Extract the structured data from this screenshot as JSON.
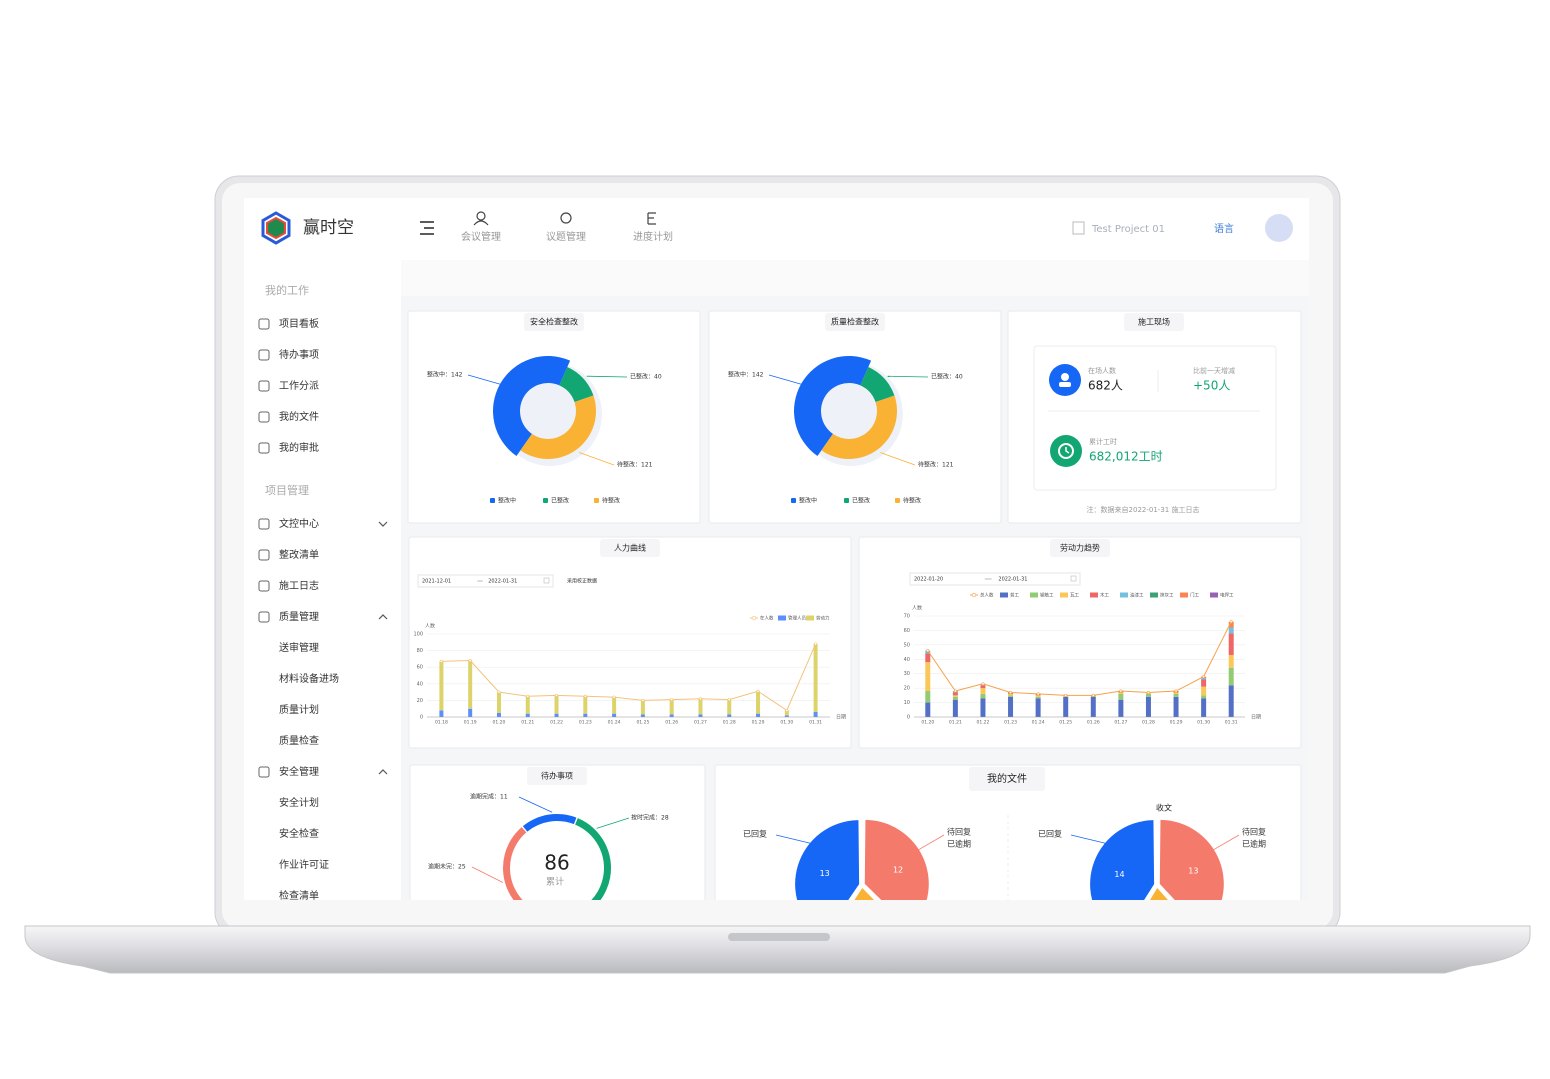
{
  "header": {
    "brand": "赢时空",
    "nav": [
      "会议管理",
      "议题管理",
      "进度计划"
    ],
    "project": "Test Project 01",
    "language": "语言"
  },
  "sidebar": [
    {
      "title": "我的工作",
      "items": [
        {
          "label": "项目看板"
        },
        {
          "label": "待办事项"
        },
        {
          "label": "工作分派"
        },
        {
          "label": "我的文件"
        },
        {
          "label": "我的审批"
        }
      ]
    },
    {
      "title": "项目管理",
      "items": [
        {
          "label": "文控中心",
          "expanded": false
        },
        {
          "label": "整改清单"
        },
        {
          "label": "施工日志"
        },
        {
          "label": "质量管理",
          "expanded": true,
          "children": [
            "送审管理",
            "材料设备进场",
            "质量计划",
            "质量检查"
          ]
        },
        {
          "label": "安全管理",
          "expanded": true,
          "children": [
            "安全计划",
            "安全检查",
            "作业许可证",
            "检查清单"
          ]
        }
      ]
    }
  ],
  "panels": {
    "safety": {
      "type": "donut",
      "title": "安全检查整改",
      "categories": [
        "整改中",
        "已整改",
        "待整改"
      ],
      "values": [
        142,
        40,
        121
      ],
      "value_labels": [
        "整改中：142",
        "已整改：40",
        "待整改：121"
      ],
      "colors": [
        "#1667f5",
        "#12a673",
        "#f9b234"
      ]
    },
    "quality": {
      "type": "donut",
      "title": "质量检查整改",
      "categories": [
        "整改中",
        "已整改",
        "待整改"
      ],
      "values": [
        142,
        40,
        121
      ],
      "value_labels": [
        "整改中：142",
        "已整改：40",
        "待整改：121"
      ],
      "colors": [
        "#1667f5",
        "#12a673",
        "#f9b234"
      ]
    },
    "site": {
      "title": "施工现场",
      "on_site_label": "在场人数",
      "on_site": "682人",
      "change_label": "比前一天增减",
      "change": "+50人",
      "hours_label": "累计工时",
      "hours": "682,012工时",
      "note": "注：数据来自2022-01-31 施工日志"
    },
    "manpower": {
      "type": "bar-line",
      "title": "人力曲线",
      "date_from": "2021-12-01",
      "date_to": "2022-01-31",
      "option": "采用校正数据",
      "y_label": "人数",
      "x_label": "日期",
      "categories": [
        "01.18",
        "01.19",
        "01.20",
        "01.21",
        "01.22",
        "01.23",
        "01.24",
        "01.25",
        "01.26",
        "01.27",
        "01.28",
        "01.29",
        "01.30",
        "01.31"
      ],
      "ylim": [
        0,
        100
      ],
      "yticks": [
        0,
        20,
        40,
        60,
        80,
        100
      ],
      "series": [
        {
          "name": "在人数",
          "type": "line",
          "color": "#f3c37c",
          "values": [
            67,
            68,
            30,
            25,
            26,
            25,
            24,
            20,
            21,
            22,
            21,
            31,
            8,
            88
          ]
        },
        {
          "name": "管理人员",
          "type": "bar",
          "color": "#5b8ff9",
          "values": [
            8,
            10,
            5,
            4,
            4,
            4,
            4,
            3,
            3,
            3,
            3,
            4,
            2,
            6
          ]
        },
        {
          "name": "劳动力",
          "type": "bar",
          "color": "#dcd36b",
          "values": [
            59,
            58,
            25,
            21,
            22,
            21,
            20,
            17,
            18,
            19,
            18,
            27,
            6,
            82
          ]
        }
      ]
    },
    "labor": {
      "type": "bar-line",
      "title": "劳动力趋势",
      "date_from": "2022-01-20",
      "date_to": "2022-01-31",
      "y_label": "人数",
      "x_label": "日期",
      "categories": [
        "01.20",
        "01.21",
        "01.22",
        "01.23",
        "01.24",
        "01.25",
        "01.26",
        "01.27",
        "01.28",
        "01.29",
        "01.30",
        "01.31"
      ],
      "ylim": [
        0,
        70
      ],
      "yticks": [
        0,
        10,
        20,
        30,
        40,
        50,
        60,
        70
      ],
      "series": [
        {
          "name": "总人数",
          "type": "line",
          "color": "#f5a24b",
          "values": [
            46,
            18,
            23,
            17,
            16,
            15,
            15,
            18,
            17,
            18,
            28,
            66
          ]
        },
        {
          "name": "普工",
          "type": "bar",
          "color": "#5470c6",
          "values": [
            10,
            12,
            13,
            14,
            13,
            14,
            14,
            12,
            14,
            14,
            13,
            22
          ]
        },
        {
          "name": "钢筋工",
          "type": "bar",
          "color": "#91cc75",
          "values": [
            8,
            2,
            3,
            1,
            1,
            0,
            1,
            4,
            2,
            2,
            2,
            12
          ]
        },
        {
          "name": "瓦工",
          "type": "bar",
          "color": "#fac858",
          "values": [
            20,
            1,
            4,
            1,
            1,
            1,
            0,
            1,
            1,
            1,
            6,
            9
          ]
        },
        {
          "name": "木工",
          "type": "bar",
          "color": "#ee6666",
          "values": [
            6,
            2,
            2,
            1,
            1,
            0,
            0,
            1,
            0,
            1,
            5,
            15
          ]
        },
        {
          "name": "油漆工",
          "type": "bar",
          "color": "#73c0de",
          "values": [
            2,
            1,
            1,
            0,
            0,
            0,
            0,
            0,
            0,
            0,
            1,
            4
          ]
        },
        {
          "name": "抹灰工",
          "type": "bar",
          "color": "#3ba272",
          "values": [
            0,
            0,
            0,
            0,
            0,
            0,
            0,
            0,
            0,
            0,
            0,
            0
          ]
        },
        {
          "name": "门工",
          "type": "bar",
          "color": "#fc8452",
          "values": [
            0,
            0,
            0,
            0,
            0,
            0,
            0,
            0,
            0,
            0,
            1,
            4
          ]
        },
        {
          "name": "电焊工",
          "type": "bar",
          "color": "#9a60b4",
          "values": [
            0,
            0,
            0,
            0,
            0,
            0,
            0,
            0,
            0,
            0,
            0,
            0
          ]
        }
      ]
    },
    "todo": {
      "type": "ring",
      "title": "待办事项",
      "categories": [
        "逾期完成",
        "按时完成",
        "逾期未完"
      ],
      "values": [
        11,
        28,
        25
      ],
      "value_labels": [
        "逾期完成：11",
        "按时完成：28",
        "逾期未完：25"
      ],
      "colors": [
        "#1667f5",
        "#12a673",
        "#f47b6b"
      ],
      "total": "86",
      "total_label": "累计"
    },
    "files": {
      "title": "我的文件",
      "sent": {
        "type": "pie",
        "categories": [
          "已回复",
          "待回复",
          "已逾期"
        ],
        "values": [
          13,
          12,
          7
        ],
        "colors": [
          "#1667f5",
          "#f47b6b",
          "#f9b234"
        ]
      },
      "received": {
        "type": "pie",
        "title": "收文",
        "categories": [
          "已回复",
          "待回复",
          "已逾期"
        ],
        "values": [
          14,
          13,
          7
        ],
        "colors": [
          "#1667f5",
          "#f47b6b",
          "#f9b234"
        ]
      }
    }
  }
}
